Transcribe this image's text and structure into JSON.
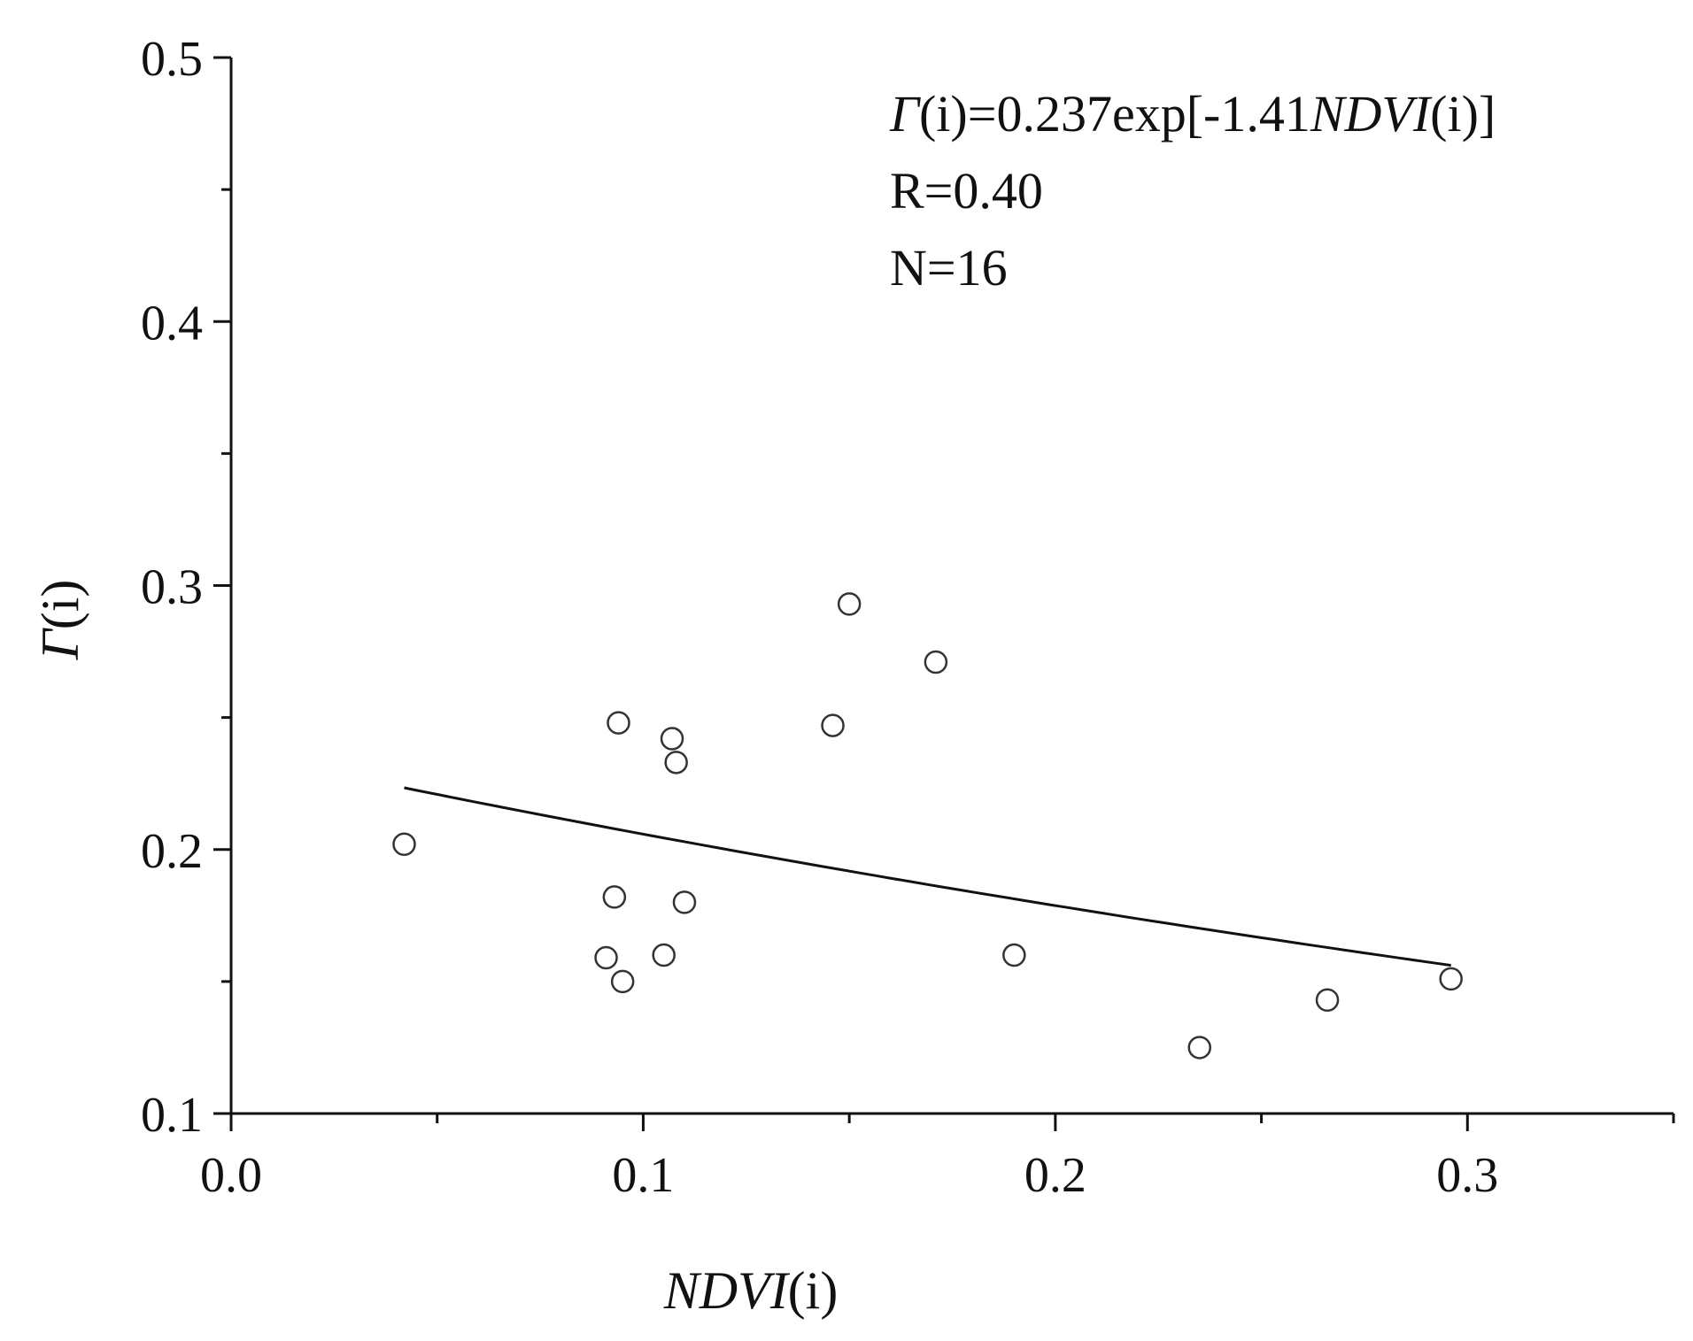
{
  "chart_data": {
    "type": "scatter",
    "title": "",
    "xlabel": {
      "italic": "NDVI",
      "plain": "(i)"
    },
    "ylabel": {
      "italic": "Γ",
      "plain": "(i)"
    },
    "xlim": [
      0.0,
      0.35
    ],
    "ylim": [
      0.1,
      0.5
    ],
    "x_ticks": [
      {
        "value": 0.0,
        "label": "0.0"
      },
      {
        "value": 0.1,
        "label": "0.1"
      },
      {
        "value": 0.2,
        "label": "0.2"
      },
      {
        "value": 0.3,
        "label": "0.3"
      }
    ],
    "x_minor_ticks": [
      0.05,
      0.15,
      0.25,
      0.35
    ],
    "y_ticks": [
      {
        "value": 0.1,
        "label": "0.1"
      },
      {
        "value": 0.2,
        "label": "0.2"
      },
      {
        "value": 0.3,
        "label": "0.3"
      },
      {
        "value": 0.4,
        "label": "0.4"
      },
      {
        "value": 0.5,
        "label": "0.5"
      }
    ],
    "y_minor_ticks": [
      0.15,
      0.25,
      0.35,
      0.45
    ],
    "grid": false,
    "legend": "none",
    "points": [
      {
        "x": 0.042,
        "y": 0.202
      },
      {
        "x": 0.091,
        "y": 0.159
      },
      {
        "x": 0.093,
        "y": 0.182
      },
      {
        "x": 0.094,
        "y": 0.248
      },
      {
        "x": 0.095,
        "y": 0.15
      },
      {
        "x": 0.105,
        "y": 0.16
      },
      {
        "x": 0.107,
        "y": 0.242
      },
      {
        "x": 0.108,
        "y": 0.233
      },
      {
        "x": 0.11,
        "y": 0.18
      },
      {
        "x": 0.146,
        "y": 0.247
      },
      {
        "x": 0.15,
        "y": 0.293
      },
      {
        "x": 0.171,
        "y": 0.271
      },
      {
        "x": 0.19,
        "y": 0.16
      },
      {
        "x": 0.235,
        "y": 0.125
      },
      {
        "x": 0.266,
        "y": 0.143
      },
      {
        "x": 0.296,
        "y": 0.151
      }
    ],
    "fit": {
      "a": 0.237,
      "b": -1.41,
      "x_range": [
        0.042,
        0.296
      ],
      "equation_parts": [
        {
          "text": "Γ",
          "italic": true
        },
        {
          "text": "(i)=0.237exp[-1.41",
          "italic": false
        },
        {
          "text": "NDVI",
          "italic": true
        },
        {
          "text": "(i)]",
          "italic": false
        }
      ],
      "r_text": "R=0.40",
      "n_text": "N=16"
    },
    "colors": {
      "axis": "#111111",
      "marker_stroke": "#333333",
      "marker_fill": "#ffffff",
      "fit_line": "#111111"
    }
  }
}
